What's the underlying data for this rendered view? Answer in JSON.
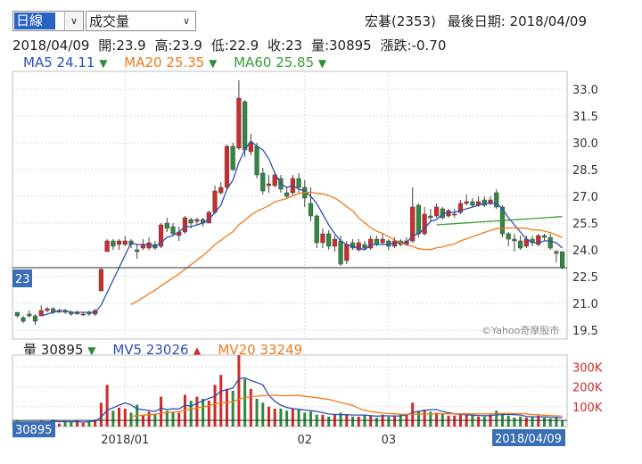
{
  "controls": {
    "period_value": "日線",
    "indicator_value": "成交量",
    "dropdown_glyph": "∨"
  },
  "header": {
    "stock": "宏碁(2353)",
    "last_date_label": "最後日期:",
    "last_date": "2018/04/09"
  },
  "ohlc": {
    "date": "2018/04/09",
    "open_label": "開:",
    "open": "23.9",
    "high_label": "高:",
    "high": "23.9",
    "low_label": "低:",
    "low": "22.9",
    "close_label": "收:",
    "close": "23",
    "volume_label": "量:",
    "volume": "30895",
    "change_label": "漲跌:",
    "change": "-0.70"
  },
  "ma_legend": [
    {
      "name": "MA5",
      "value": "24.11",
      "dir": "▼",
      "color": "#2c4fb5"
    },
    {
      "name": "MA20",
      "value": "25.35",
      "dir": "▼",
      "color": "#ef7a1a"
    },
    {
      "name": "MA60",
      "value": "25.85",
      "dir": "▼",
      "color": "#3a9a3a"
    }
  ],
  "vol_legend": {
    "label": "量",
    "value": "30895",
    "dir": "▼",
    "mv5": {
      "name": "MV5",
      "value": "23026",
      "dir": "▲",
      "color": "#2c4fb5"
    },
    "mv20": {
      "name": "MV20",
      "value": "33249",
      "color": "#ef7a1a"
    }
  },
  "watermark": "©Yahoo奇摩股市",
  "colors": {
    "up": "#d12a2a",
    "down": "#2f8a3e",
    "ma5": "#2c4fb5",
    "ma20": "#ef7a1a",
    "ma60": "#3a9a3a",
    "grid": "#dcdcdc",
    "axis_badge": "#3a6eb5"
  },
  "chart_data": {
    "type": "candlestick",
    "price_axis": {
      "ticks": [
        "33.0",
        "31.5",
        "30.0",
        "28.5",
        "27.0",
        "25.5",
        "24.0",
        "22.5",
        "21.0",
        "19.5"
      ],
      "ylim": [
        19.5,
        33.0
      ],
      "current": "23"
    },
    "volume_axis": {
      "ticks": [
        "300K",
        "200K",
        "100K"
      ],
      "ylim": [
        0,
        360000
      ],
      "current": "30895"
    },
    "x_tick_labels": [
      "2018/01",
      "02",
      "03"
    ],
    "x_tick_index": [
      18,
      48,
      62
    ],
    "last_date": "2018/04/09",
    "candles": [
      [
        20.5,
        20.3,
        20.5,
        20.2
      ],
      [
        20.2,
        20.0,
        20.3,
        19.9
      ],
      [
        20.4,
        20.3,
        20.6,
        20.2
      ],
      [
        20.3,
        20.0,
        20.4,
        19.8
      ],
      [
        20.3,
        20.6,
        20.9,
        20.3
      ],
      [
        20.6,
        20.7,
        20.8,
        20.5
      ],
      [
        20.7,
        20.5,
        20.8,
        20.4
      ],
      [
        20.5,
        20.6,
        20.7,
        20.5
      ],
      [
        20.6,
        20.5,
        20.7,
        20.4
      ],
      [
        20.5,
        20.4,
        20.6,
        20.3
      ],
      [
        20.4,
        20.5,
        20.6,
        20.4
      ],
      [
        20.4,
        20.4,
        20.5,
        20.3
      ],
      [
        20.5,
        20.4,
        20.6,
        20.3
      ],
      [
        20.4,
        20.6,
        20.7,
        20.3
      ],
      [
        21.7,
        22.9,
        23.0,
        21.7
      ],
      [
        23.9,
        24.5,
        24.6,
        23.9
      ],
      [
        24.5,
        24.2,
        24.6,
        24.0
      ],
      [
        24.3,
        24.5,
        24.6,
        24.0
      ],
      [
        24.3,
        24.5,
        24.8,
        24.2
      ],
      [
        24.5,
        24.3,
        24.6,
        24.1
      ],
      [
        24.0,
        23.9,
        24.3,
        23.5
      ],
      [
        24.1,
        24.3,
        24.6,
        24.0
      ],
      [
        24.1,
        24.4,
        24.7,
        24.0
      ],
      [
        24.3,
        24.1,
        24.5,
        24.0
      ],
      [
        24.2,
        25.4,
        25.5,
        24.1
      ],
      [
        25.5,
        25.2,
        25.8,
        25.0
      ],
      [
        25.3,
        24.9,
        25.5,
        24.8
      ],
      [
        24.8,
        25.0,
        25.3,
        24.5
      ],
      [
        25.0,
        25.8,
        25.9,
        24.9
      ],
      [
        25.7,
        25.5,
        25.8,
        25.2
      ],
      [
        25.6,
        25.7,
        25.8,
        25.4
      ],
      [
        25.7,
        25.5,
        25.8,
        25.3
      ],
      [
        25.5,
        26.1,
        26.2,
        25.5
      ],
      [
        26.1,
        27.3,
        27.6,
        26.0
      ],
      [
        27.2,
        27.5,
        27.8,
        27.1
      ],
      [
        27.5,
        29.8,
        29.9,
        27.4
      ],
      [
        29.8,
        28.5,
        30.0,
        28.4
      ],
      [
        29.7,
        32.5,
        33.5,
        29.6
      ],
      [
        32.3,
        29.6,
        32.4,
        29.2
      ],
      [
        29.5,
        30.0,
        30.5,
        29.3
      ],
      [
        29.8,
        28.2,
        30.0,
        28.0
      ],
      [
        28.3,
        27.3,
        28.6,
        27.1
      ],
      [
        27.6,
        27.7,
        28.2,
        27.2
      ],
      [
        27.6,
        28.2,
        28.4,
        27.5
      ],
      [
        28.0,
        27.4,
        28.2,
        27.2
      ],
      [
        27.2,
        27.0,
        27.5,
        26.9
      ],
      [
        27.2,
        28.0,
        28.2,
        27.0
      ],
      [
        28.0,
        27.5,
        28.3,
        27.2
      ],
      [
        27.5,
        26.9,
        27.9,
        26.4
      ],
      [
        26.6,
        25.9,
        27.5,
        25.6
      ],
      [
        25.9,
        24.4,
        26.0,
        24.1
      ],
      [
        24.4,
        24.9,
        25.2,
        24.1
      ],
      [
        24.9,
        24.2,
        25.1,
        24.0
      ],
      [
        24.2,
        24.6,
        24.8,
        23.9
      ],
      [
        24.5,
        23.2,
        24.8,
        23.1
      ],
      [
        23.4,
        24.3,
        24.5,
        23.2
      ],
      [
        24.4,
        24.1,
        24.6,
        24.0
      ],
      [
        24.0,
        24.4,
        24.6,
        23.9
      ],
      [
        24.3,
        24.1,
        24.5,
        24.0
      ],
      [
        24.1,
        24.6,
        24.8,
        24.0
      ],
      [
        24.6,
        24.3,
        24.8,
        24.2
      ],
      [
        24.4,
        24.6,
        24.9,
        24.3
      ],
      [
        24.5,
        24.2,
        24.6,
        24.0
      ],
      [
        24.2,
        24.5,
        24.7,
        24.1
      ],
      [
        24.5,
        24.3,
        24.6,
        24.2
      ],
      [
        24.3,
        24.5,
        24.7,
        24.2
      ],
      [
        24.5,
        26.4,
        27.5,
        24.4
      ],
      [
        26.5,
        24.9,
        26.6,
        24.7
      ],
      [
        24.9,
        26.0,
        26.4,
        24.8
      ],
      [
        25.9,
        25.8,
        26.3,
        25.6
      ],
      [
        25.9,
        26.4,
        26.6,
        25.8
      ],
      [
        26.3,
        25.8,
        26.4,
        25.7
      ],
      [
        25.9,
        26.2,
        26.3,
        25.8
      ],
      [
        26.0,
        26.0,
        26.3,
        25.8
      ],
      [
        26.1,
        26.6,
        26.8,
        26.0
      ],
      [
        26.6,
        26.7,
        27.1,
        26.5
      ],
      [
        26.7,
        26.5,
        26.9,
        26.4
      ],
      [
        26.5,
        26.7,
        27.0,
        26.4
      ],
      [
        26.8,
        26.5,
        27.0,
        26.4
      ],
      [
        26.6,
        26.8,
        27.0,
        26.5
      ],
      [
        27.2,
        26.4,
        27.4,
        26.3
      ],
      [
        26.4,
        24.9,
        26.5,
        24.7
      ],
      [
        24.9,
        24.6,
        25.0,
        24.2
      ],
      [
        24.6,
        24.5,
        24.9,
        23.9
      ],
      [
        24.5,
        24.1,
        24.8,
        24.0
      ],
      [
        24.2,
        24.6,
        24.8,
        24.1
      ],
      [
        24.6,
        24.4,
        24.8,
        24.2
      ],
      [
        24.3,
        24.8,
        24.9,
        24.2
      ],
      [
        24.8,
        24.7,
        24.9,
        24.5
      ],
      [
        24.7,
        24.1,
        24.9,
        24.0
      ],
      [
        23.9,
        23.8,
        24.0,
        23.3
      ],
      [
        23.9,
        23.0,
        23.9,
        22.9
      ]
    ],
    "volumes": [
      30,
      18,
      25,
      22,
      30,
      20,
      35,
      15,
      25,
      22,
      30,
      18,
      28,
      35,
      120,
      210,
      80,
      95,
      90,
      70,
      110,
      60,
      75,
      65,
      150,
      80,
      75,
      70,
      160,
      130,
      150,
      140,
      130,
      210,
      260,
      190,
      180,
      360,
      240,
      190,
      140,
      120,
      100,
      90,
      90,
      80,
      90,
      85,
      70,
      75,
      60,
      60,
      50,
      60,
      70,
      60,
      50,
      50,
      60,
      55,
      45,
      60,
      50,
      55,
      60,
      65,
      120,
      80,
      85,
      75,
      70,
      65,
      55,
      55,
      60,
      60,
      55,
      50,
      50,
      60,
      80,
      60,
      55,
      45,
      50,
      45,
      50,
      55,
      45,
      40,
      45,
      31
    ],
    "ma5": [
      null,
      null,
      null,
      null,
      20.3,
      20.4,
      20.5,
      20.6,
      20.6,
      20.5,
      20.5,
      20.5,
      20.5,
      20.5,
      20.9,
      21.6,
      22.3,
      23.0,
      23.7,
      24.4,
      24.3,
      24.3,
      24.3,
      24.2,
      24.4,
      24.7,
      24.8,
      25.0,
      25.3,
      25.3,
      25.4,
      25.5,
      25.7,
      26.1,
      26.5,
      27.4,
      27.9,
      28.9,
      29.6,
      30.1,
      29.8,
      29.6,
      29.1,
      28.3,
      27.7,
      27.5,
      27.6,
      27.4,
      27.3,
      27.0,
      26.6,
      26.0,
      25.4,
      24.9,
      24.5,
      24.3,
      24.2,
      24.1,
      24.0,
      24.3,
      24.3,
      24.3,
      24.3,
      24.4,
      24.4,
      24.4,
      24.8,
      24.9,
      25.2,
      25.6,
      25.7,
      26.0,
      26.1,
      26.1,
      26.2,
      26.3,
      26.4,
      26.5,
      26.6,
      26.6,
      26.6,
      26.3,
      25.8,
      25.4,
      25.0,
      24.6,
      24.4,
      24.4,
      24.5,
      24.5,
      24.4,
      24.1
    ]
  }
}
